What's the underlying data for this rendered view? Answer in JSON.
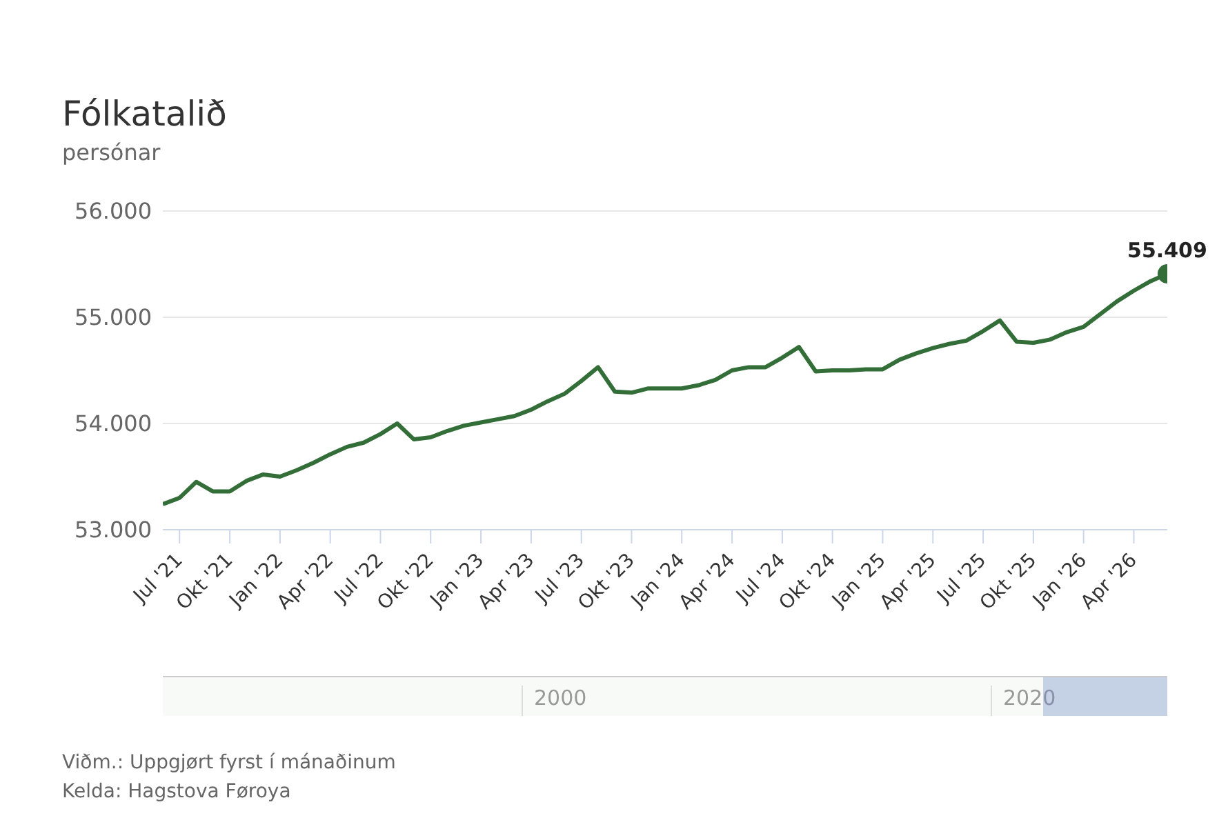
{
  "chart_data": {
    "type": "line",
    "title": "Fólkatalið",
    "subtitle": "persónar",
    "x": [
      "2021-06",
      "2021-07",
      "2021-08",
      "2021-09",
      "2021-10",
      "2021-11",
      "2021-12",
      "2022-01",
      "2022-02",
      "2022-03",
      "2022-04",
      "2022-05",
      "2022-06",
      "2022-07",
      "2022-08",
      "2022-09",
      "2022-10",
      "2022-11",
      "2022-12",
      "2023-01",
      "2023-02",
      "2023-03",
      "2023-04",
      "2023-05",
      "2023-06",
      "2023-07",
      "2023-08",
      "2023-09",
      "2023-10",
      "2023-11",
      "2023-12",
      "2024-01",
      "2024-02",
      "2024-03",
      "2024-04",
      "2024-05",
      "2024-06",
      "2024-07",
      "2024-08",
      "2024-09",
      "2024-10",
      "2024-11",
      "2024-12",
      "2025-01",
      "2025-02",
      "2025-03",
      "2025-04",
      "2025-05",
      "2025-06",
      "2025-07",
      "2025-08",
      "2025-09",
      "2025-10",
      "2025-11",
      "2025-12",
      "2026-01",
      "2026-02",
      "2026-03",
      "2026-04",
      "2026-05",
      "2026-06"
    ],
    "series": [
      {
        "color": "#336e39",
        "values": [
          53240,
          53300,
          53450,
          53360,
          53360,
          53460,
          53520,
          53500,
          53560,
          53630,
          53710,
          53780,
          53820,
          53900,
          54000,
          53850,
          53870,
          53930,
          53980,
          54010,
          54040,
          54070,
          54130,
          54210,
          54280,
          54400,
          54530,
          54300,
          54290,
          54330,
          54330,
          54330,
          54360,
          54410,
          54500,
          54530,
          54530,
          54620,
          54720,
          54490,
          54500,
          54500,
          54510,
          54510,
          54600,
          54660,
          54710,
          54750,
          54780,
          54870,
          54970,
          54770,
          54760,
          54790,
          54860,
          54910,
          55030,
          55150,
          55250,
          55340,
          55409
        ],
        "value_labels": [
          null,
          null,
          null,
          null,
          null,
          null,
          null,
          null,
          null,
          null,
          null,
          null,
          null,
          null,
          null,
          null,
          null,
          null,
          null,
          null,
          null,
          null,
          null,
          null,
          null,
          null,
          null,
          null,
          null,
          null,
          null,
          null,
          null,
          null,
          null,
          null,
          null,
          null,
          null,
          null,
          null,
          null,
          null,
          null,
          null,
          null,
          null,
          null,
          null,
          null,
          null,
          null,
          null,
          null,
          null,
          null,
          null,
          null,
          null,
          null,
          "55.409"
        ]
      }
    ],
    "xlim": [
      "2021-06",
      "2026-06"
    ],
    "xticks": [
      {
        "value": "2021-07",
        "label": "Jul '21"
      },
      {
        "value": "2021-10",
        "label": "Okt '21"
      },
      {
        "value": "2022-01",
        "label": "Jan '22"
      },
      {
        "value": "2022-04",
        "label": "Apr '22"
      },
      {
        "value": "2022-07",
        "label": "Jul '22"
      },
      {
        "value": "2022-10",
        "label": "Okt '22"
      },
      {
        "value": "2023-01",
        "label": "Jan '23"
      },
      {
        "value": "2023-04",
        "label": "Apr '23"
      },
      {
        "value": "2023-07",
        "label": "Jul '23"
      },
      {
        "value": "2023-10",
        "label": "Okt '23"
      },
      {
        "value": "2024-01",
        "label": "Jan '24"
      },
      {
        "value": "2024-04",
        "label": "Apr '24"
      },
      {
        "value": "2024-07",
        "label": "Jul '24"
      },
      {
        "value": "2024-10",
        "label": "Okt '24"
      },
      {
        "value": "2025-01",
        "label": "Jan '25"
      },
      {
        "value": "2025-04",
        "label": "Apr '25"
      },
      {
        "value": "2025-07",
        "label": "Jul '25"
      },
      {
        "value": "2025-10",
        "label": "Okt '25"
      },
      {
        "value": "2026-01",
        "label": "Jan '26"
      },
      {
        "value": "2026-04",
        "label": "Apr '26"
      }
    ],
    "ylim": [
      53000,
      56000
    ],
    "yticks": [
      {
        "value": 53000,
        "label": "53.000"
      },
      {
        "value": 54000,
        "label": "54.000"
      },
      {
        "value": 55000,
        "label": "55.000"
      },
      {
        "value": 56000,
        "label": "56.000"
      }
    ],
    "grid": "y",
    "legend": false,
    "marker": "none",
    "line_style": "solid",
    "annotations": [
      "2000",
      "2020",
      "Viðm.: Uppgjørt fyrst í mánaðinum",
      "Kelda: Hagstova Føroya"
    ]
  }
}
